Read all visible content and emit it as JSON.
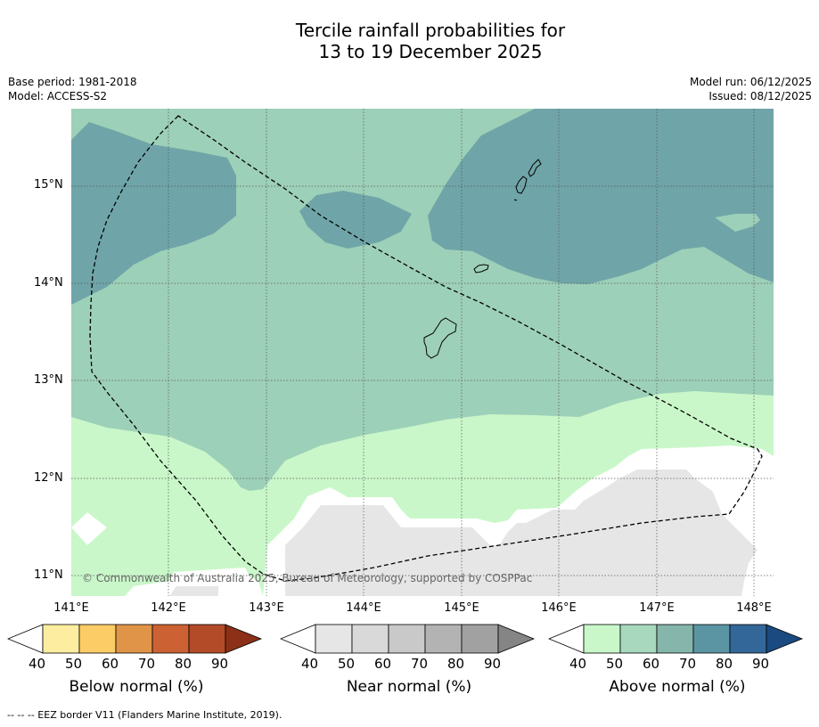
{
  "title": {
    "line1": "Tercile rainfall probabilities for",
    "line2": "13 to 19 December 2025"
  },
  "meta": {
    "base_period": "Base period: 1981-2018",
    "model": "Model: ACCESS-S2",
    "model_run": "Model run: 06/12/2025",
    "issued": "Issued: 08/12/2025"
  },
  "map": {
    "lat_ticks": [
      "15°N",
      "14°N",
      "13°N",
      "12°N",
      "11°N"
    ],
    "lon_ticks": [
      "141°E",
      "142°E",
      "143°E",
      "144°E",
      "145°E",
      "146°E",
      "147°E",
      "148°E"
    ],
    "copyright": "© Commonwealth of Australia 2025, Bureau of Meteorology, supported by COSPPac",
    "colors": {
      "above_50": "#c9f7c9",
      "above_60": "#9dd0b8",
      "above_70": "#6fa5a8",
      "near_40": "#e6e6e6",
      "no_data": "#ffffff"
    }
  },
  "colorbars": [
    {
      "title": "Below normal (%)",
      "ticks": [
        "40",
        "50",
        "60",
        "70",
        "80",
        "90"
      ],
      "colors": [
        "#ffffff",
        "#fdeda0",
        "#fccc66",
        "#e09448",
        "#cc6233",
        "#b34b28",
        "#8c3018"
      ]
    },
    {
      "title": "Near normal (%)",
      "ticks": [
        "40",
        "50",
        "60",
        "70",
        "80",
        "90"
      ],
      "colors": [
        "#ffffff",
        "#e6e6e6",
        "#d9d9d9",
        "#c9c9c9",
        "#b3b3b3",
        "#a1a1a1",
        "#858585"
      ]
    },
    {
      "title": "Above normal (%)",
      "ticks": [
        "40",
        "50",
        "60",
        "70",
        "80",
        "90"
      ],
      "colors": [
        "#ffffff",
        "#c9f7c9",
        "#a8d8bd",
        "#85b5ab",
        "#5b95a3",
        "#336799",
        "#1a4a80"
      ]
    }
  ],
  "footnote": "--  --  -- EEZ border V11 (Flanders Marine Institute, 2019)."
}
